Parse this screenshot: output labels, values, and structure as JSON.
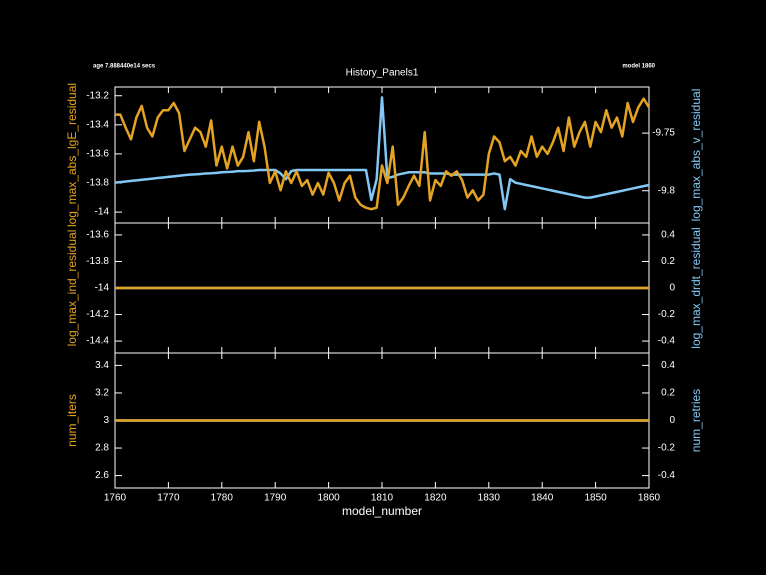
{
  "header": {
    "left": "age 7.888440e14 secs",
    "title": "History_Panels1",
    "right": "model 1860"
  },
  "chart_data": [
    {
      "type": "line",
      "ylabel": "log_max_abs_lgE_residual",
      "y2label": "log_max_abs_v_residual",
      "xlim": [
        1760,
        1860
      ],
      "xticks": [
        1760,
        1770,
        1780,
        1790,
        1800,
        1810,
        1820,
        1830,
        1840,
        1850,
        1860
      ],
      "ylim": [
        -14.075,
        -13.14
      ],
      "yticks": [
        -13.2,
        -13.4,
        -13.6,
        -13.8,
        -14
      ],
      "y2lim": [
        -9.828,
        -9.71
      ],
      "y2ticks": [
        -9.75,
        -9.8
      ],
      "x": [
        1760,
        1761,
        1762,
        1763,
        1764,
        1765,
        1766,
        1767,
        1768,
        1769,
        1770,
        1771,
        1772,
        1773,
        1774,
        1775,
        1776,
        1777,
        1778,
        1779,
        1780,
        1781,
        1782,
        1783,
        1784,
        1785,
        1786,
        1787,
        1788,
        1789,
        1790,
        1791,
        1792,
        1793,
        1794,
        1795,
        1796,
        1797,
        1798,
        1799,
        1800,
        1801,
        1802,
        1803,
        1804,
        1805,
        1806,
        1807,
        1808,
        1809,
        1810,
        1811,
        1812,
        1813,
        1814,
        1815,
        1816,
        1817,
        1818,
        1819,
        1820,
        1821,
        1822,
        1823,
        1824,
        1825,
        1826,
        1827,
        1828,
        1829,
        1830,
        1831,
        1832,
        1833,
        1834,
        1835,
        1836,
        1837,
        1838,
        1839,
        1840,
        1841,
        1842,
        1843,
        1844,
        1845,
        1846,
        1847,
        1848,
        1849,
        1850,
        1851,
        1852,
        1853,
        1854,
        1855,
        1856,
        1857,
        1858,
        1859,
        1860
      ],
      "series": [
        {
          "color": "#82c8f5",
          "axis": "y2",
          "values": [
            -9.793,
            -9.7925,
            -9.792,
            -9.7915,
            -9.791,
            -9.7905,
            -9.79,
            -9.7895,
            -9.789,
            -9.7885,
            -9.788,
            -9.7875,
            -9.787,
            -9.7865,
            -9.786,
            -9.7858,
            -9.7855,
            -9.785,
            -9.7848,
            -9.7845,
            -9.784,
            -9.7838,
            -9.7835,
            -9.783,
            -9.783,
            -9.7828,
            -9.7825,
            -9.782,
            -9.782,
            -9.782,
            -9.782,
            -9.785,
            -9.79,
            -9.783,
            -9.782,
            -9.782,
            -9.782,
            -9.782,
            -9.782,
            -9.782,
            -9.782,
            -9.782,
            -9.782,
            -9.782,
            -9.782,
            -9.782,
            -9.782,
            -9.782,
            -9.808,
            -9.79,
            -9.719,
            -9.789,
            -9.788,
            -9.786,
            -9.785,
            -9.784,
            -9.784,
            -9.784,
            -9.784,
            -9.785,
            -9.785,
            -9.785,
            -9.785,
            -9.786,
            -9.786,
            -9.786,
            -9.786,
            -9.786,
            -9.786,
            -9.786,
            -9.786,
            -9.785,
            -9.786,
            -9.816,
            -9.79,
            -9.793,
            -9.794,
            -9.795,
            -9.796,
            -9.797,
            -9.798,
            -9.799,
            -9.8,
            -9.801,
            -9.802,
            -9.803,
            -9.804,
            -9.805,
            -9.806,
            -9.806,
            -9.805,
            -9.804,
            -9.803,
            -9.802,
            -9.801,
            -9.8,
            -9.799,
            -9.798,
            -9.797,
            -9.796,
            -9.795
          ]
        },
        {
          "color": "#e4a322",
          "axis": "y",
          "values": [
            -13.33,
            -13.33,
            -13.42,
            -13.5,
            -13.35,
            -13.27,
            -13.42,
            -13.48,
            -13.35,
            -13.3,
            -13.3,
            -13.25,
            -13.32,
            -13.58,
            -13.5,
            -13.42,
            -13.45,
            -13.55,
            -13.37,
            -13.68,
            -13.55,
            -13.7,
            -13.55,
            -13.68,
            -13.62,
            -13.45,
            -13.65,
            -13.38,
            -13.55,
            -13.8,
            -13.72,
            -13.85,
            -13.72,
            -13.8,
            -13.72,
            -13.82,
            -13.78,
            -13.88,
            -13.8,
            -13.88,
            -13.73,
            -13.8,
            -13.92,
            -13.8,
            -13.75,
            -13.9,
            -13.95,
            -13.97,
            -13.98,
            -13.97,
            -13.68,
            -13.8,
            -13.55,
            -13.95,
            -13.9,
            -13.82,
            -13.75,
            -13.82,
            -13.45,
            -13.92,
            -13.78,
            -13.82,
            -13.72,
            -13.75,
            -13.72,
            -13.78,
            -13.9,
            -13.85,
            -13.92,
            -13.88,
            -13.6,
            -13.48,
            -13.52,
            -13.65,
            -13.62,
            -13.68,
            -13.58,
            -13.62,
            -13.48,
            -13.62,
            -13.55,
            -13.6,
            -13.52,
            -13.42,
            -13.58,
            -13.35,
            -13.55,
            -13.45,
            -13.38,
            -13.55,
            -13.38,
            -13.45,
            -13.3,
            -13.42,
            -13.35,
            -13.48,
            -13.25,
            -13.38,
            -13.28,
            -13.22,
            -13.28
          ]
        }
      ]
    },
    {
      "type": "line",
      "ylabel": "log_max_ind_residual",
      "y2label": "log_max_drdt_residual",
      "xlim": [
        1760,
        1860
      ],
      "xticks": [
        1760,
        1770,
        1780,
        1790,
        1800,
        1810,
        1820,
        1830,
        1840,
        1850,
        1860
      ],
      "ylim": [
        -14.49,
        -13.51
      ],
      "yticks": [
        -13.6,
        -13.8,
        -14,
        -14.2,
        -14.4
      ],
      "y2lim": [
        -0.49,
        0.49
      ],
      "y2ticks": [
        0.4,
        0.2,
        0,
        -0.2,
        -0.4
      ],
      "x": [
        1760,
        1860
      ],
      "series": [
        {
          "color": "#82c8f5",
          "axis": "y2",
          "values": [
            0,
            0
          ]
        },
        {
          "color": "#e4a322",
          "axis": "y",
          "values": [
            -14,
            -14
          ]
        }
      ]
    },
    {
      "type": "line",
      "ylabel": "num_iters",
      "y2label": "num_retries",
      "xlabel": "model_number",
      "xlim": [
        1760,
        1860
      ],
      "xticks": [
        1760,
        1770,
        1780,
        1790,
        1800,
        1810,
        1820,
        1830,
        1840,
        1850,
        1860
      ],
      "ylim": [
        2.51,
        3.49
      ],
      "yticks": [
        3.4,
        3.2,
        3,
        2.8,
        2.6
      ],
      "y2lim": [
        -0.49,
        0.49
      ],
      "y2ticks": [
        0.4,
        0.2,
        0,
        -0.2,
        -0.4
      ],
      "x": [
        1760,
        1860
      ],
      "series": [
        {
          "color": "#82c8f5",
          "axis": "y2",
          "values": [
            0,
            0
          ]
        },
        {
          "color": "#e4a322",
          "axis": "y",
          "values": [
            3,
            3
          ]
        }
      ]
    }
  ]
}
